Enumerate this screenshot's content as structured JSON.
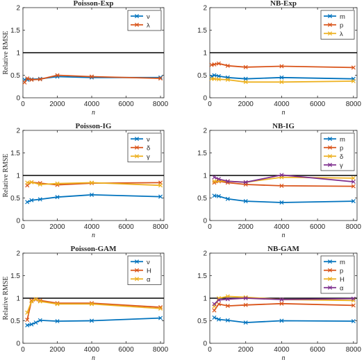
{
  "colors": {
    "blue": "#0072BD",
    "orange": "#D95319",
    "yellow": "#EDB120",
    "purple": "#7E2F8E",
    "reference": "#000000"
  },
  "chart_data": [
    {
      "type": "line",
      "title": "Poisson-Exp",
      "xlabel": "n",
      "ylabel": "Relative RMSE",
      "xlim": [
        0,
        8200
      ],
      "ylim": [
        0,
        2
      ],
      "xticks": [
        "0",
        "2000",
        "4000",
        "6000",
        "8000"
      ],
      "yticks": [
        "0",
        "0.5",
        "1",
        "1.5",
        "2"
      ],
      "reference_line": 1,
      "legend_position": "top-right",
      "grid": false,
      "x": [
        100,
        250,
        500,
        1000,
        2000,
        4000,
        8000
      ],
      "series": [
        {
          "name": "ν",
          "color": "#0072BD",
          "values": [
            0.4,
            0.4,
            0.41,
            0.42,
            0.47,
            0.45,
            0.45
          ]
        },
        {
          "name": "λ",
          "color": "#D95319",
          "values": [
            0.34,
            0.43,
            0.4,
            0.41,
            0.5,
            0.47,
            0.43
          ]
        }
      ]
    },
    {
      "type": "line",
      "title": "NB-Exp",
      "xlabel": "n",
      "ylabel": "",
      "xlim": [
        0,
        8200
      ],
      "ylim": [
        0,
        2
      ],
      "xticks": [
        "0",
        "2000",
        "4000",
        "6000",
        "8000"
      ],
      "yticks": [
        "0",
        "0.5",
        "1",
        "1.5",
        "2"
      ],
      "reference_line": 1,
      "legend_position": "top-right",
      "grid": false,
      "x": [
        100,
        250,
        500,
        1000,
        2000,
        4000,
        8000
      ],
      "series": [
        {
          "name": "m",
          "color": "#0072BD",
          "values": [
            0.47,
            0.5,
            0.48,
            0.45,
            0.42,
            0.45,
            0.42
          ]
        },
        {
          "name": "p",
          "color": "#D95319",
          "values": [
            0.73,
            0.74,
            0.76,
            0.71,
            0.68,
            0.7,
            0.67
          ]
        },
        {
          "name": "λ",
          "color": "#EDB120",
          "values": [
            0.42,
            0.42,
            0.41,
            0.4,
            0.35,
            0.35,
            0.37
          ]
        }
      ]
    },
    {
      "type": "line",
      "title": "Poisson-IG",
      "xlabel": "n",
      "ylabel": "Relative RMSE",
      "xlim": [
        0,
        8200
      ],
      "ylim": [
        0,
        2
      ],
      "xticks": [
        "0",
        "2000",
        "4000",
        "6000",
        "8000"
      ],
      "yticks": [
        "0",
        "0.5",
        "1",
        "1.5",
        "2"
      ],
      "reference_line": 1,
      "legend_position": "top-right",
      "grid": false,
      "x": [
        250,
        500,
        1000,
        2000,
        4000,
        8000
      ],
      "series": [
        {
          "name": "ν",
          "color": "#0072BD",
          "values": [
            0.41,
            0.45,
            0.47,
            0.52,
            0.57,
            0.53
          ]
        },
        {
          "name": "δ",
          "color": "#D95319",
          "values": [
            0.78,
            0.85,
            0.83,
            0.79,
            0.83,
            0.84
          ]
        },
        {
          "name": "γ",
          "color": "#EDB120",
          "values": [
            0.84,
            0.85,
            0.8,
            0.82,
            0.84,
            0.78
          ]
        }
      ]
    },
    {
      "type": "line",
      "title": "NB-IG",
      "xlabel": "n",
      "ylabel": "",
      "xlim": [
        0,
        8200
      ],
      "ylim": [
        0,
        2
      ],
      "xticks": [
        "0",
        "2000",
        "4000",
        "6000",
        "8000"
      ],
      "yticks": [
        "0",
        "0.5",
        "1",
        "1.5",
        "2"
      ],
      "reference_line": 1,
      "legend_position": "top-right",
      "grid": false,
      "x": [
        250,
        500,
        1000,
        2000,
        4000,
        8000
      ],
      "series": [
        {
          "name": "m",
          "color": "#0072BD",
          "values": [
            0.55,
            0.54,
            0.48,
            0.43,
            0.4,
            0.43
          ]
        },
        {
          "name": "p",
          "color": "#D95319",
          "values": [
            0.84,
            0.87,
            0.84,
            0.8,
            0.77,
            0.76
          ]
        },
        {
          "name": "δ",
          "color": "#EDB120",
          "values": [
            0.87,
            0.88,
            0.87,
            0.85,
            0.96,
            0.94
          ]
        },
        {
          "name": "γ",
          "color": "#7E2F8E",
          "values": [
            0.96,
            0.92,
            0.87,
            0.85,
            1.01,
            0.86
          ]
        }
      ]
    },
    {
      "type": "line",
      "title": "Poisson-GAM",
      "xlabel": "n",
      "ylabel": "Relative RMSE",
      "xlim": [
        0,
        8200
      ],
      "ylim": [
        0,
        2
      ],
      "xticks": [
        "0",
        "2000",
        "4000",
        "6000",
        "8000"
      ],
      "yticks": [
        "0",
        "0.5",
        "1",
        "1.5",
        "2"
      ],
      "reference_line": 1,
      "legend_position": "top-right",
      "grid": false,
      "x": [
        250,
        500,
        750,
        1000,
        2000,
        4000,
        8000
      ],
      "series": [
        {
          "name": "ν",
          "color": "#0072BD",
          "values": [
            0.4,
            0.42,
            0.46,
            0.51,
            0.49,
            0.5,
            0.56
          ]
        },
        {
          "name": "H",
          "color": "#D95319",
          "values": [
            0.52,
            0.95,
            0.97,
            0.95,
            0.89,
            0.89,
            0.8
          ]
        },
        {
          "name": "α",
          "color": "#EDB120",
          "values": [
            0.68,
            0.93,
            0.98,
            0.93,
            0.87,
            0.87,
            0.77
          ]
        }
      ]
    },
    {
      "type": "line",
      "title": "NB-GAM",
      "xlabel": "n",
      "ylabel": "",
      "xlim": [
        0,
        8200
      ],
      "ylim": [
        0,
        2
      ],
      "xticks": [
        "0",
        "2000",
        "4000",
        "6000",
        "8000"
      ],
      "yticks": [
        "0",
        "0.5",
        "1",
        "1.5",
        "2"
      ],
      "reference_line": 1,
      "legend_position": "top-right",
      "grid": false,
      "x": [
        250,
        500,
        1000,
        2000,
        4000,
        8000
      ],
      "series": [
        {
          "name": "m",
          "color": "#0072BD",
          "values": [
            0.57,
            0.53,
            0.51,
            0.46,
            0.5,
            0.49
          ]
        },
        {
          "name": "p",
          "color": "#D95319",
          "values": [
            0.73,
            0.87,
            0.83,
            0.85,
            0.88,
            0.84
          ]
        },
        {
          "name": "H",
          "color": "#EDB120",
          "values": [
            0.82,
            1.0,
            1.04,
            1.02,
            0.97,
            0.95
          ]
        },
        {
          "name": "α",
          "color": "#7E2F8E",
          "values": [
            0.87,
            0.96,
            0.98,
            1.0,
            0.97,
            0.99
          ]
        }
      ]
    }
  ]
}
